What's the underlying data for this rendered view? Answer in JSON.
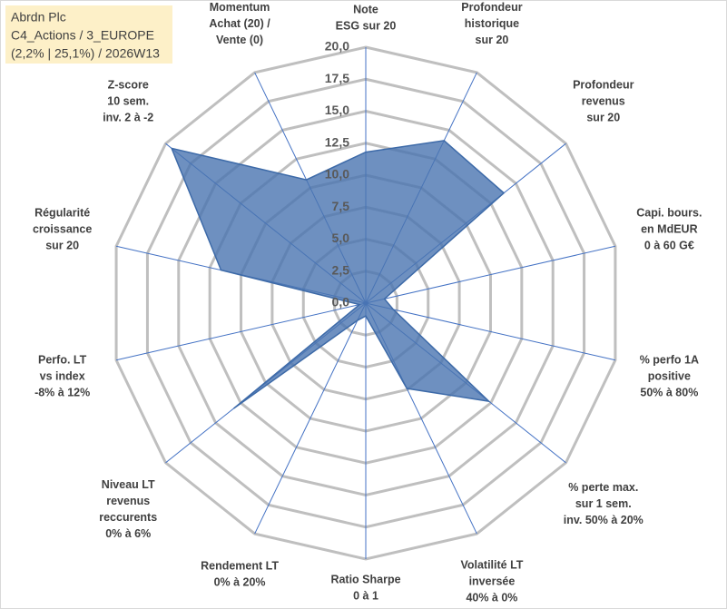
{
  "chart_data": {
    "type": "radar",
    "title": [
      "Abrdn Plc",
      "C4_Actions / 3_EUROPE",
      "(2,2% | 25,1%) / 2026W13"
    ],
    "categories": [
      [
        "Note",
        "ESG sur 20"
      ],
      [
        "Profondeur",
        "historique",
        "sur 20"
      ],
      [
        "Profondeur",
        "revenus",
        "sur 20"
      ],
      [
        "Capi. bours.",
        "en MdEUR",
        "0 à 60 G€"
      ],
      [
        "% perfo 1A",
        "positive",
        "50% à 80%"
      ],
      [
        "% perte max.",
        "sur 1 sem.",
        "inv. 50% à 20%"
      ],
      [
        "Volatilité LT",
        "inversée",
        "40% à 0%"
      ],
      [
        "Ratio Sharpe",
        "0 à 1"
      ],
      [
        "Rendement LT",
        "0% à 20%"
      ],
      [
        "Niveau LT",
        "revenus",
        "reccurents",
        "0% à 6%"
      ],
      [
        "Perfo. LT",
        "vs index",
        "-8% à 12%"
      ],
      [
        "Régularité",
        "croissance",
        "sur 20"
      ],
      [
        "Z-score",
        "10 sem.",
        "inv. 2 à -2"
      ],
      [
        "Momentum",
        "Achat (20) /",
        "Vente (0)"
      ]
    ],
    "values": [
      11.8,
      14.1,
      13.8,
      1.5,
      2.2,
      12.3,
      7.4,
      1,
      1.5,
      13.2,
      0.5,
      11.6,
      19.4,
      10.7
    ],
    "color": "#4a74b0",
    "ylim": [
      0,
      20
    ],
    "yticks": [
      {
        "value": 0,
        "label": "0,0"
      },
      {
        "value": 2.5,
        "label": "2,5"
      },
      {
        "value": 5,
        "label": "5,0"
      },
      {
        "value": 7.5,
        "label": "7,5"
      },
      {
        "value": 10,
        "label": "10,0"
      },
      {
        "value": 12.5,
        "label": "12,5"
      },
      {
        "value": 15,
        "label": "15,0"
      },
      {
        "value": 17.5,
        "label": "17,5"
      },
      {
        "value": 20,
        "label": "20,0"
      }
    ],
    "grid": true
  }
}
